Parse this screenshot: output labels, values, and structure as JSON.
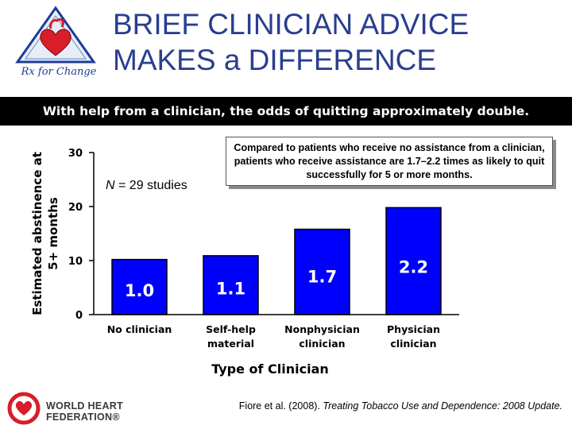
{
  "logo": {
    "caption": "Rx for Change"
  },
  "title": {
    "line1": "BRIEF CLINICIAN ADVICE",
    "line2": "MAKES a DIFFERENCE"
  },
  "subtitle": "With help from a clinician, the odds of quitting approximately double.",
  "callout": "Compared to patients who receive no assistance from a clinician, patients who receive assistance are 1.7–2.2 times as likely to quit successfully for 5 or more months.",
  "annotation": {
    "n_label": "N",
    "n_text": " = 29 studies"
  },
  "citation": {
    "authors": "Fiore et al. (2008). ",
    "work": "Treating Tobacco Use and Dependence: 2008 Update."
  },
  "footer_logo": {
    "line1": "WORLD HEART",
    "line2": "FEDERATION®"
  },
  "chart_data": {
    "type": "bar",
    "categories": [
      "No clinician",
      "Self-help material",
      "Nonphysician clinician",
      "Physician clinician"
    ],
    "category_lines": [
      [
        "No clinician"
      ],
      [
        "Self-help",
        "material"
      ],
      [
        "Nonphysician",
        "clinician"
      ],
      [
        "Physician",
        "clinician"
      ]
    ],
    "values": [
      10.2,
      10.9,
      15.8,
      19.8
    ],
    "data_labels": [
      "1.0",
      "1.1",
      "1.7",
      "2.2"
    ],
    "xlabel": "Type of Clinician",
    "ylabel": [
      "Estimated abstinence at",
      "5+ months"
    ],
    "ylim": [
      0,
      30
    ],
    "yticks": [
      0,
      10,
      20,
      30
    ],
    "grid": false,
    "colors": {
      "bar": "#0000ff",
      "bar_edge": "#000000",
      "label_bg": "#0000ff",
      "label_text": "#ffffff",
      "axis": "#000000"
    }
  }
}
